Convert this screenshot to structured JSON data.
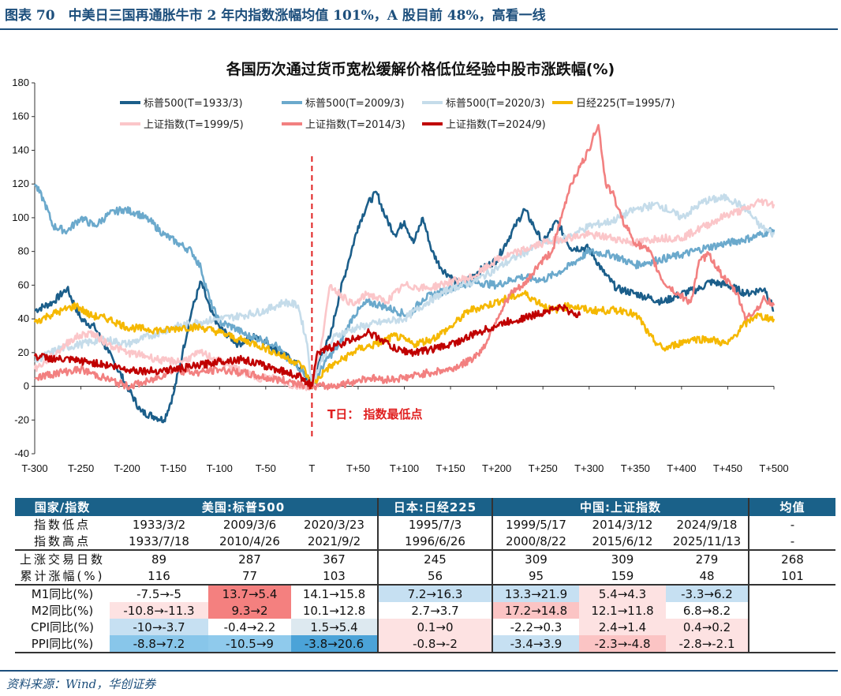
{
  "figure_title": "图表 70　中美日三国再通胀牛市 2 年内指数涨幅均值 101%，A 股目前 48%，高看一线",
  "source": "资料来源：Wind，华创证券",
  "chart_data": {
    "type": "line",
    "title": "各国历次通过货币宽松缓解价格低位经验中股市涨跌幅(%)",
    "xlabel": "",
    "ylabel": "",
    "xlim": [
      -300,
      500
    ],
    "ylim": [
      -40,
      180
    ],
    "yticks": [
      -40,
      -20,
      0,
      20,
      40,
      60,
      80,
      100,
      120,
      140,
      160,
      180
    ],
    "xtick_values": [
      -300,
      -250,
      -200,
      -150,
      -100,
      -50,
      0,
      50,
      100,
      150,
      200,
      250,
      300,
      350,
      400,
      450,
      500
    ],
    "xtick_labels": [
      "T-300",
      "T-250",
      "T-200",
      "T-150",
      "T-100",
      "T-50",
      "T",
      "T+50",
      "T+100",
      "T+150",
      "T+200",
      "T+250",
      "T+300",
      "T+350",
      "T+400",
      "T+450",
      "T+500"
    ],
    "legend_position": "top",
    "annotation": {
      "text": "T日： 指数最低点",
      "x": 0,
      "color": "#e02020"
    },
    "series": [
      {
        "name": "标普500(T=1933/3)",
        "color": "#1b5e8a",
        "x": [
          -300,
          -280,
          -265,
          -250,
          -235,
          -220,
          -200,
          -185,
          -170,
          -160,
          -150,
          -140,
          -130,
          -120,
          -110,
          -100,
          -80,
          -60,
          -40,
          -20,
          -5,
          0,
          10,
          20,
          30,
          40,
          50,
          60,
          70,
          80,
          90,
          100,
          110,
          120,
          130,
          140,
          160,
          180,
          200,
          220,
          230,
          240,
          250,
          265,
          280,
          300,
          315,
          330,
          350,
          380,
          400,
          420,
          430,
          450,
          470,
          490,
          500
        ],
        "y": [
          45,
          50,
          58,
          40,
          35,
          20,
          0,
          -15,
          -18,
          -20,
          -5,
          20,
          45,
          62,
          45,
          35,
          25,
          30,
          22,
          15,
          5,
          0,
          18,
          30,
          55,
          75,
          95,
          108,
          115,
          100,
          90,
          98,
          85,
          100,
          80,
          70,
          60,
          68,
          75,
          95,
          105,
          95,
          85,
          98,
          82,
          82,
          68,
          58,
          55,
          50,
          55,
          58,
          62,
          60,
          55,
          58,
          45
        ]
      },
      {
        "name": "标普500(T=2009/3)",
        "color": "#6ba9cc",
        "x": [
          -300,
          -290,
          -280,
          -265,
          -250,
          -235,
          -220,
          -205,
          -190,
          -175,
          -160,
          -145,
          -130,
          -120,
          -110,
          -100,
          -85,
          -70,
          -55,
          -40,
          -25,
          -10,
          0,
          15,
          30,
          45,
          60,
          75,
          90,
          105,
          120,
          150,
          175,
          200,
          225,
          250,
          275,
          300,
          325,
          350,
          375,
          400,
          425,
          450,
          475,
          500
        ],
        "y": [
          120,
          110,
          95,
          92,
          100,
          95,
          102,
          105,
          103,
          98,
          90,
          85,
          80,
          70,
          50,
          38,
          35,
          30,
          28,
          25,
          15,
          10,
          0,
          15,
          25,
          42,
          50,
          48,
          45,
          42,
          52,
          58,
          62,
          60,
          65,
          63,
          70,
          80,
          78,
          72,
          75,
          78,
          82,
          85,
          88,
          93
        ]
      },
      {
        "name": "标普500(T=2020/3)",
        "color": "#c5dcea",
        "x": [
          -300,
          -275,
          -250,
          -225,
          -200,
          -175,
          -150,
          -125,
          -100,
          -75,
          -50,
          -30,
          -15,
          -5,
          0,
          10,
          25,
          50,
          75,
          100,
          125,
          150,
          175,
          200,
          225,
          250,
          275,
          300,
          325,
          350,
          375,
          400,
          425,
          450,
          470,
          485,
          500
        ],
        "y": [
          15,
          22,
          25,
          28,
          25,
          30,
          35,
          38,
          40,
          42,
          45,
          50,
          48,
          25,
          0,
          15,
          30,
          35,
          38,
          40,
          50,
          58,
          62,
          70,
          78,
          85,
          88,
          95,
          98,
          105,
          108,
          100,
          110,
          112,
          105,
          95,
          90
        ]
      },
      {
        "name": "日经225(T=1995/7)",
        "color": "#f5b800",
        "x": [
          -300,
          -285,
          -270,
          -255,
          -240,
          -220,
          -200,
          -180,
          -160,
          -140,
          -120,
          -100,
          -80,
          -60,
          -40,
          -20,
          -10,
          0,
          15,
          30,
          50,
          70,
          90,
          110,
          130,
          150,
          170,
          190,
          210,
          230,
          245,
          260,
          280,
          300,
          320,
          340,
          355,
          365,
          380,
          395,
          410,
          430,
          450,
          465,
          480,
          500
        ],
        "y": [
          38,
          42,
          45,
          48,
          42,
          40,
          35,
          34,
          33,
          35,
          35,
          32,
          28,
          25,
          20,
          15,
          12,
          0,
          10,
          15,
          22,
          25,
          30,
          25,
          28,
          35,
          45,
          48,
          52,
          55,
          50,
          45,
          48,
          45,
          45,
          45,
          40,
          30,
          22,
          25,
          28,
          28,
          25,
          35,
          42,
          40
        ]
      },
      {
        "name": "上证指数(T=1999/5)",
        "color": "#fbc6c9",
        "x": [
          -300,
          -280,
          -260,
          -240,
          -220,
          -200,
          -180,
          -160,
          -140,
          -120,
          -100,
          -80,
          -60,
          -40,
          -20,
          0,
          10,
          20,
          30,
          45,
          60,
          80,
          100,
          125,
          150,
          175,
          200,
          225,
          250,
          275,
          300,
          325,
          350,
          375,
          400,
          425,
          450,
          470,
          485,
          500
        ],
        "y": [
          10,
          18,
          28,
          32,
          25,
          20,
          18,
          15,
          15,
          20,
          15,
          10,
          5,
          5,
          0,
          0,
          25,
          60,
          55,
          48,
          55,
          50,
          60,
          58,
          62,
          65,
          75,
          80,
          85,
          88,
          90,
          88,
          85,
          88,
          88,
          95,
          102,
          105,
          110,
          108
        ]
      },
      {
        "name": "上证指数(T=2014/3)",
        "color": "#f28080",
        "x": [
          -300,
          -275,
          -250,
          -225,
          -200,
          -175,
          -150,
          -125,
          -100,
          -75,
          -50,
          -25,
          0,
          20,
          40,
          60,
          80,
          100,
          125,
          150,
          170,
          185,
          200,
          215,
          230,
          245,
          260,
          270,
          280,
          290,
          300,
          305,
          310,
          318,
          325,
          335,
          350,
          365,
          380,
          395,
          410,
          420,
          430,
          445,
          460,
          470,
          480,
          490,
          500
        ],
        "y": [
          5,
          8,
          10,
          5,
          0,
          3,
          10,
          8,
          10,
          8,
          5,
          3,
          0,
          0,
          2,
          5,
          4,
          5,
          8,
          10,
          15,
          22,
          40,
          55,
          60,
          72,
          80,
          100,
          120,
          130,
          140,
          150,
          155,
          120,
          115,
          100,
          85,
          80,
          62,
          55,
          50,
          75,
          78,
          65,
          55,
          40,
          45,
          52,
          48
        ]
      },
      {
        "name": "上证指数(T=2024/9)",
        "color": "#c00000",
        "x": [
          -300,
          -275,
          -250,
          -225,
          -200,
          -175,
          -150,
          -125,
          -100,
          -75,
          -50,
          -25,
          -10,
          0,
          5,
          15,
          30,
          45,
          60,
          75,
          90,
          110,
          130,
          150,
          165,
          180,
          195,
          210,
          225,
          240,
          255,
          270,
          280,
          290
        ],
        "y": [
          18,
          16,
          15,
          13,
          10,
          9,
          10,
          12,
          15,
          16,
          12,
          8,
          5,
          0,
          18,
          22,
          25,
          28,
          32,
          28,
          22,
          20,
          22,
          25,
          28,
          32,
          35,
          38,
          40,
          42,
          45,
          47,
          44,
          42
        ]
      }
    ]
  },
  "table": {
    "header": [
      "国家/指数",
      "美国:标普500",
      "日本:日经225",
      "中国:上证指数",
      "均值"
    ],
    "rows": [
      {
        "label": "指数低点",
        "cells": [
          {
            "t": "1933/3/2"
          },
          {
            "t": "2009/3/6"
          },
          {
            "t": "2020/3/23"
          },
          {
            "t": "1995/7/3"
          },
          {
            "t": "1999/5/17"
          },
          {
            "t": "2014/3/12"
          },
          {
            "t": "2024/9/18"
          },
          {
            "t": "-"
          }
        ]
      },
      {
        "label": "指数高点",
        "cells": [
          {
            "t": "1933/7/18"
          },
          {
            "t": "2010/4/26"
          },
          {
            "t": "2021/9/2"
          },
          {
            "t": "1996/6/26"
          },
          {
            "t": "2000/8/22"
          },
          {
            "t": "2015/6/12"
          },
          {
            "t": "2025/11/13"
          },
          {
            "t": "-"
          }
        ]
      },
      {
        "label": "上涨交易日数",
        "cells": [
          {
            "t": "89"
          },
          {
            "t": "287"
          },
          {
            "t": "367"
          },
          {
            "t": "245"
          },
          {
            "t": "309"
          },
          {
            "t": "309"
          },
          {
            "t": "279"
          },
          {
            "t": "268"
          }
        ]
      },
      {
        "label": "累计涨幅(%)",
        "cells": [
          {
            "t": "116"
          },
          {
            "t": "77"
          },
          {
            "t": "103"
          },
          {
            "t": "56"
          },
          {
            "t": "95"
          },
          {
            "t": "159"
          },
          {
            "t": "48"
          },
          {
            "t": "101"
          }
        ]
      },
      {
        "label": "M1同比(%)",
        "cells": [
          {
            "t": "-7.5→-5",
            "c": "#ffffff"
          },
          {
            "t": "13.7→5.4",
            "c": "#f4807f"
          },
          {
            "t": "14.1→15.8",
            "c": "#ffffff"
          },
          {
            "t": "7.2→16.3",
            "c": "#c6e0f2"
          },
          {
            "t": "13.3→21.9",
            "c": "#c6e0f2"
          },
          {
            "t": "5.4→4.3",
            "c": "#fde2e2"
          },
          {
            "t": "-3.3→6.2",
            "c": "#c6e0f2"
          },
          {
            "t": ""
          }
        ]
      },
      {
        "label": "M2同比(%)",
        "cells": [
          {
            "t": "-10.8→-11.3",
            "c": "#fde2e2"
          },
          {
            "t": "9.3→2",
            "c": "#f4807f"
          },
          {
            "t": "10.1→12.8",
            "c": "#ffffff"
          },
          {
            "t": "2.7→3.7",
            "c": "#ffffff"
          },
          {
            "t": "17.2→14.8",
            "c": "#fbc4c4"
          },
          {
            "t": "12.1→11.8",
            "c": "#fde2e2"
          },
          {
            "t": "6.8→8.2",
            "c": "#ffffff"
          },
          {
            "t": ""
          }
        ]
      },
      {
        "label": "CPI同比(%)",
        "cells": [
          {
            "t": "-10→-3.7",
            "c": "#c6e0f2"
          },
          {
            "t": "-0.4→2.2",
            "c": "#ffffff"
          },
          {
            "t": "1.5→5.4",
            "c": "#dde9f0"
          },
          {
            "t": "0.1→0",
            "c": "#fde2e2"
          },
          {
            "t": "-2.2→0.3",
            "c": "#ffffff"
          },
          {
            "t": "2.4→1.4",
            "c": "#fde2e2"
          },
          {
            "t": "0.4→0.2",
            "c": "#fde2e2"
          },
          {
            "t": ""
          }
        ]
      },
      {
        "label": "PPI同比(%)",
        "cells": [
          {
            "t": "-8.8→7.2",
            "c": "#88c6ea"
          },
          {
            "t": "-10.5→9",
            "c": "#8fcaec"
          },
          {
            "t": "-3.8→20.6",
            "c": "#4ba3d8"
          },
          {
            "t": "-0.8→-2",
            "c": "#fde2e2"
          },
          {
            "t": "-3.4→3.9",
            "c": "#c6e0f2"
          },
          {
            "t": "-2.3→-4.8",
            "c": "#fbc4c4"
          },
          {
            "t": "-2.8→-2.1",
            "c": "#fde2e2"
          },
          {
            "t": ""
          }
        ]
      }
    ]
  }
}
